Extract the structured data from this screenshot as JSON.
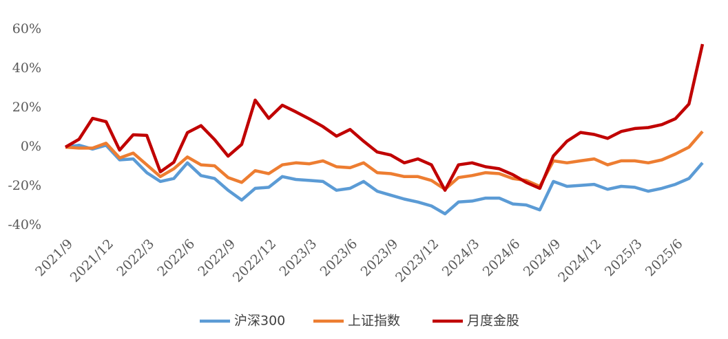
{
  "chart_data": {
    "type": "line",
    "categories": [
      "2021/9",
      null,
      null,
      "2021/12",
      null,
      null,
      "2022/3",
      null,
      null,
      "2022/6",
      null,
      null,
      "2022/9",
      null,
      null,
      "2022/12",
      null,
      null,
      "2023/3",
      null,
      null,
      "2023/6",
      null,
      null,
      "2023/9",
      null,
      null,
      "2023/12",
      null,
      null,
      "2024/3",
      null,
      null,
      "2024/6",
      null,
      null,
      "2024/9",
      null,
      null,
      "2024/12",
      null,
      null,
      "2025/3",
      null,
      null,
      "2025/6",
      null,
      null
    ],
    "series": [
      {
        "name": "沪深300",
        "color": "#5b9bd5",
        "values": [
          0,
          1,
          -1,
          1,
          -6.5,
          -6,
          -13,
          -17.5,
          -16,
          -8,
          -14.5,
          -16,
          -22,
          -27,
          -21,
          -20.5,
          -15,
          -16.5,
          -17,
          -17.5,
          -22,
          -21,
          -17.5,
          -22.5,
          -24.5,
          -26.5,
          -28,
          -30,
          -34,
          -28,
          -27.5,
          -26,
          -26,
          -29,
          -29.5,
          -32,
          -17.5,
          -20,
          -19.5,
          -19,
          -21.5,
          -20,
          -20.5,
          -22.5,
          -21,
          -19,
          -16,
          -8
        ]
      },
      {
        "name": "上证指数",
        "color": "#ed7d31",
        "values": [
          0,
          -0.5,
          -0.5,
          2,
          -5.5,
          -3,
          -9,
          -15,
          -11,
          -5,
          -9,
          -9.5,
          -15.5,
          -18,
          -12,
          -13.5,
          -9,
          -8,
          -8.5,
          -7,
          -10,
          -10.5,
          -8,
          -13,
          -13.5,
          -15,
          -15,
          -17,
          -21.5,
          -15.5,
          -14.5,
          -13,
          -13.5,
          -16,
          -17,
          -20,
          -7,
          -8,
          -7,
          -6,
          -9,
          -7,
          -7,
          -8,
          -6.5,
          -3.5,
          0,
          8
        ]
      },
      {
        "name": "月度金股",
        "color": "#c00000",
        "values": [
          0,
          4,
          14.7,
          13,
          -1.5,
          6.3,
          6,
          -12.6,
          -7.7,
          7.4,
          11,
          3.9,
          -4.6,
          1.4,
          24,
          14.7,
          21.4,
          18,
          14.4,
          10.5,
          5.6,
          9,
          3,
          -2.5,
          -4,
          -8,
          -6,
          -9,
          -22,
          -9,
          -8,
          -10,
          -11,
          -14,
          -18,
          -21,
          -4.5,
          3,
          7.5,
          6.5,
          4.5,
          8,
          9.5,
          10,
          11.5,
          14.5,
          22,
          52.6
        ]
      }
    ],
    "ylim": [
      -40,
      60
    ],
    "yticks": [
      {
        "value": -40,
        "label": "-40%"
      },
      {
        "value": -20,
        "label": "-20%"
      },
      {
        "value": 0,
        "label": "0%"
      },
      {
        "value": 20,
        "label": "20%"
      },
      {
        "value": 40,
        "label": "40%"
      },
      {
        "value": 60,
        "label": "60%"
      }
    ],
    "grid": false
  }
}
